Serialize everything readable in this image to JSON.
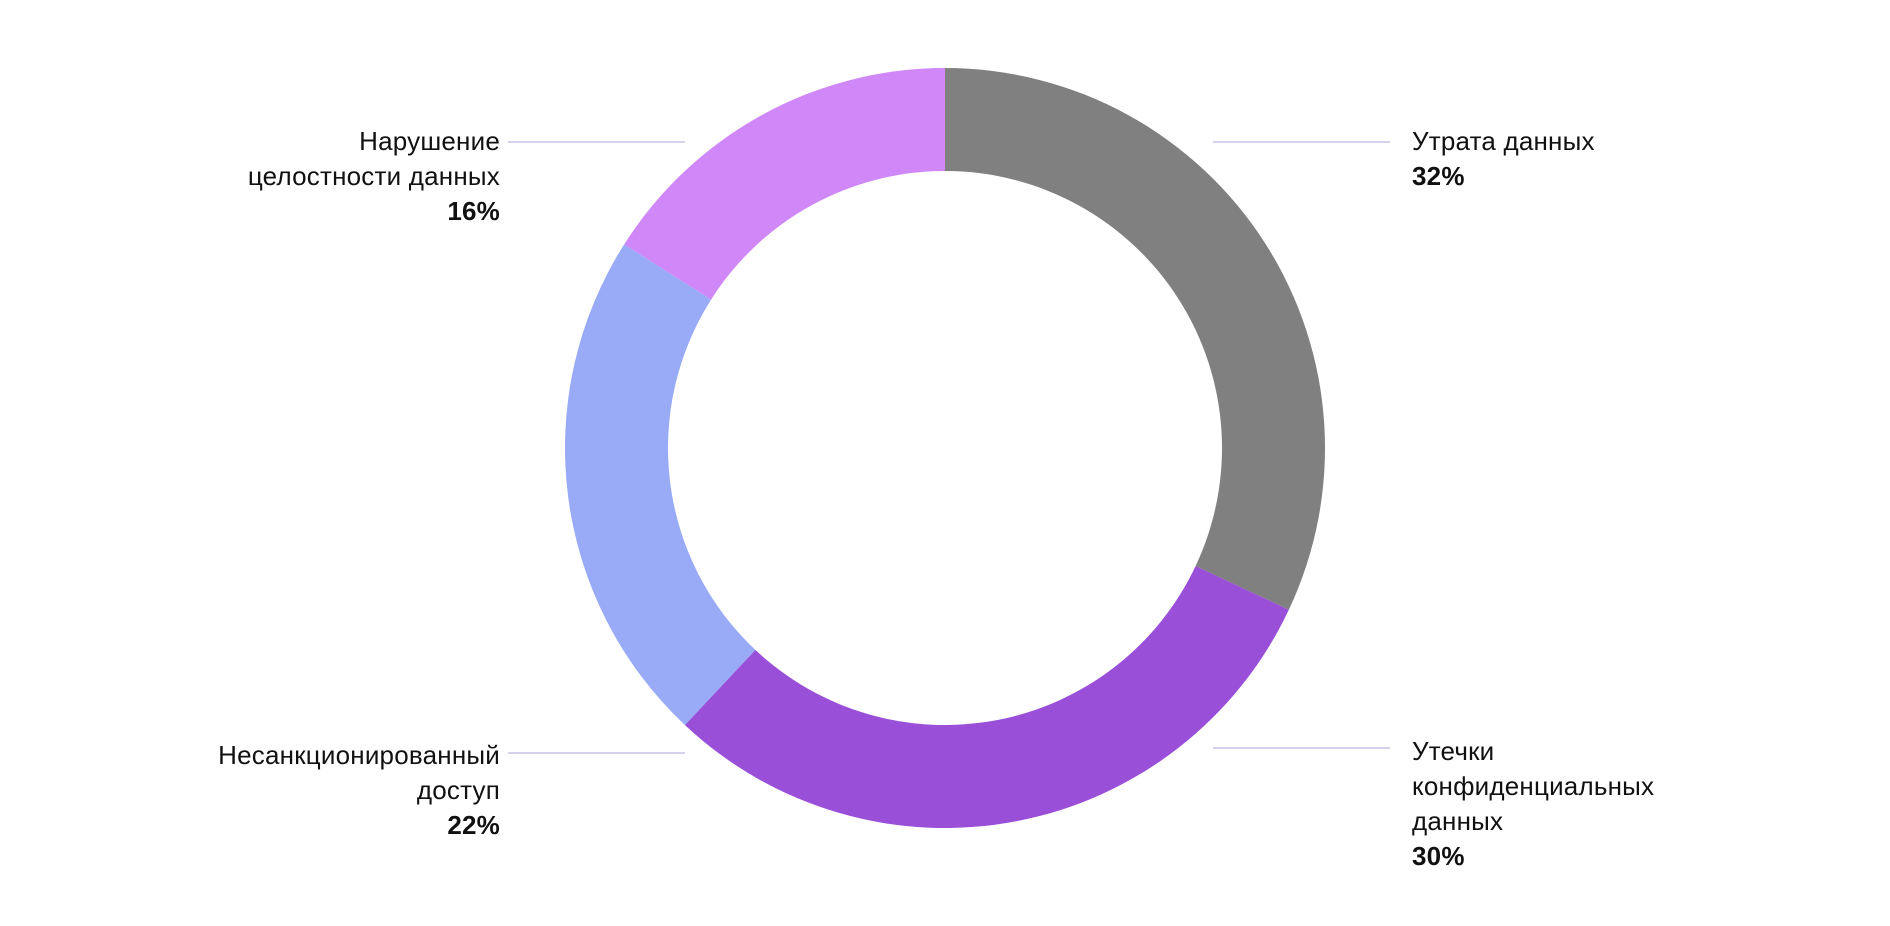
{
  "chart_data": {
    "type": "pie",
    "donut": true,
    "start_angle_deg": 0,
    "direction": "clockwise",
    "slices": [
      {
        "key": "loss",
        "label_lines": [
          "Утрата данных"
        ],
        "value_label": "32%",
        "value": 32,
        "color": "#808080"
      },
      {
        "key": "leaks",
        "label_lines": [
          "Утечки",
          "конфиденциальных",
          "данных"
        ],
        "value_label": "30%",
        "value": 30,
        "color": "#9a4fd8"
      },
      {
        "key": "unauthorized",
        "label_lines": [
          "Несанкционированный",
          "доступ"
        ],
        "value_label": "22%",
        "value": 22,
        "color": "#99abf7"
      },
      {
        "key": "integrity",
        "label_lines": [
          "Нарушение",
          "целостности данных"
        ],
        "value_label": "16%",
        "value": 16,
        "color": "#d088f8"
      }
    ],
    "leader_line_color": "#d4d2ef",
    "legend": "none"
  }
}
